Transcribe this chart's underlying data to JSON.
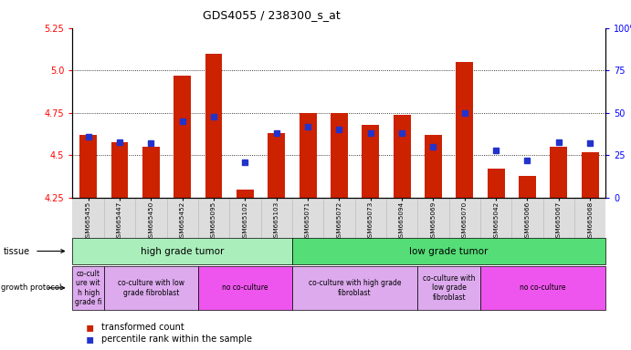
{
  "title": "GDS4055 / 238300_s_at",
  "samples": [
    "GSM665455",
    "GSM665447",
    "GSM665450",
    "GSM665452",
    "GSM665095",
    "GSM665102",
    "GSM665103",
    "GSM665071",
    "GSM665072",
    "GSM665073",
    "GSM665094",
    "GSM665069",
    "GSM665070",
    "GSM665042",
    "GSM665066",
    "GSM665067",
    "GSM665068"
  ],
  "transformed_count": [
    4.62,
    4.58,
    4.55,
    4.97,
    5.1,
    4.3,
    4.63,
    4.75,
    4.75,
    4.68,
    4.74,
    4.62,
    5.05,
    4.42,
    4.38,
    4.55,
    4.52
  ],
  "percentile_rank": [
    36,
    33,
    32,
    45,
    48,
    21,
    38,
    42,
    40,
    38,
    38,
    30,
    50,
    28,
    22,
    33,
    32
  ],
  "ylim_left": [
    4.25,
    5.25
  ],
  "ylim_right": [
    0,
    100
  ],
  "yticks_left": [
    4.25,
    4.5,
    4.75,
    5.0,
    5.25
  ],
  "yticks_right": [
    0,
    25,
    50,
    75,
    100
  ],
  "bar_color": "#cc2200",
  "dot_color": "#2233cc",
  "tissue_groups": [
    {
      "label": "high grade tumor",
      "start": 0,
      "end": 6,
      "color": "#aaeebb"
    },
    {
      "label": "low grade tumor",
      "start": 7,
      "end": 16,
      "color": "#55dd77"
    }
  ],
  "growth_protocol_groups": [
    {
      "label": "co-cult\nure wit\nh high\ngrade fi",
      "start": 0,
      "end": 0,
      "color": "#ddaaee"
    },
    {
      "label": "co-culture with low\ngrade fibroblast",
      "start": 1,
      "end": 3,
      "color": "#ddaaee"
    },
    {
      "label": "no co-culture",
      "start": 4,
      "end": 6,
      "color": "#ee55ee"
    },
    {
      "label": "co-culture with high grade\nfibroblast",
      "start": 7,
      "end": 10,
      "color": "#ddaaee"
    },
    {
      "label": "co-culture with\nlow grade\nfibroblast",
      "start": 11,
      "end": 12,
      "color": "#ddaaee"
    },
    {
      "label": "no co-culture",
      "start": 13,
      "end": 16,
      "color": "#ee55ee"
    }
  ]
}
